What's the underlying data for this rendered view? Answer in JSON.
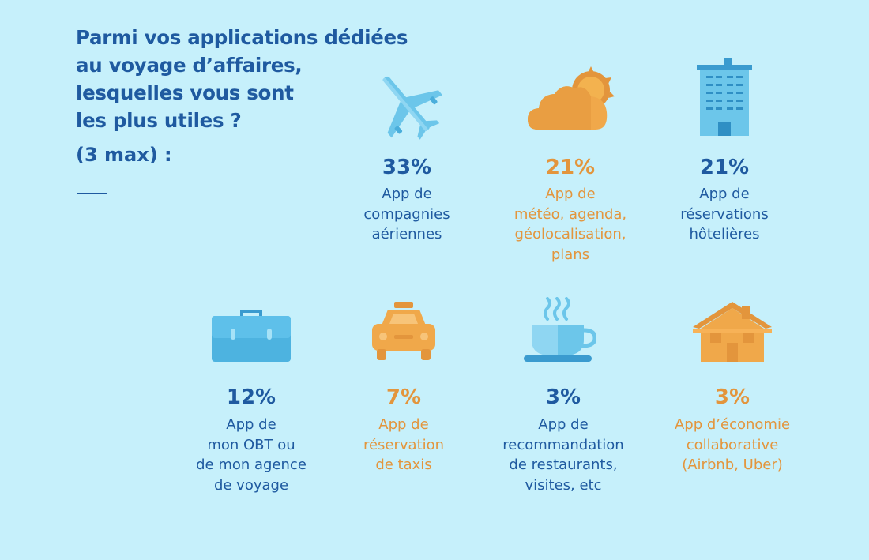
{
  "title_lines": [
    "Parmi vos applications dédiées",
    "au voyage d’affaires,",
    "lesquelles vous sont",
    "les plus utiles ?"
  ],
  "subtitle": "(3 max) :",
  "colors": {
    "blue": "#1f5aa0",
    "orange": "#e3953c",
    "background": "#c6f0fb"
  },
  "chart_data": {
    "type": "table",
    "title": "Parmi vos applications dédiées au voyage d’affaires, lesquelles vous sont les plus utiles ? (3 max) :",
    "items": [
      {
        "icon": "airplane-icon",
        "value": 33,
        "value_label": "33%",
        "color": "blue",
        "label_lines": [
          "App de",
          "compagnies",
          "aériennes"
        ]
      },
      {
        "icon": "cloud-sun-icon",
        "value": 21,
        "value_label": "21%",
        "color": "orange",
        "label_lines": [
          "App de",
          "météo, agenda,",
          "géolocalisation,",
          "plans"
        ]
      },
      {
        "icon": "hotel-building-icon",
        "value": 21,
        "value_label": "21%",
        "color": "blue",
        "label_lines": [
          "App de",
          "réservations",
          "hôtelières"
        ]
      },
      {
        "icon": "briefcase-icon",
        "value": 12,
        "value_label": "12%",
        "color": "blue",
        "label_lines": [
          "App de",
          "mon OBT ou",
          "de mon agence",
          "de voyage"
        ]
      },
      {
        "icon": "taxi-icon",
        "value": 7,
        "value_label": "7%",
        "color": "orange",
        "label_lines": [
          "App de",
          "réservation",
          "de taxis"
        ]
      },
      {
        "icon": "coffee-cup-icon",
        "value": 3,
        "value_label": "3%",
        "color": "blue",
        "label_lines": [
          "App de",
          "recommandation",
          "de restaurants,",
          "visites, etc"
        ]
      },
      {
        "icon": "house-icon",
        "value": 3,
        "value_label": "3%",
        "color": "orange",
        "label_lines": [
          "App d’économie",
          "collaborative",
          "(Airbnb, Uber)"
        ]
      }
    ]
  }
}
